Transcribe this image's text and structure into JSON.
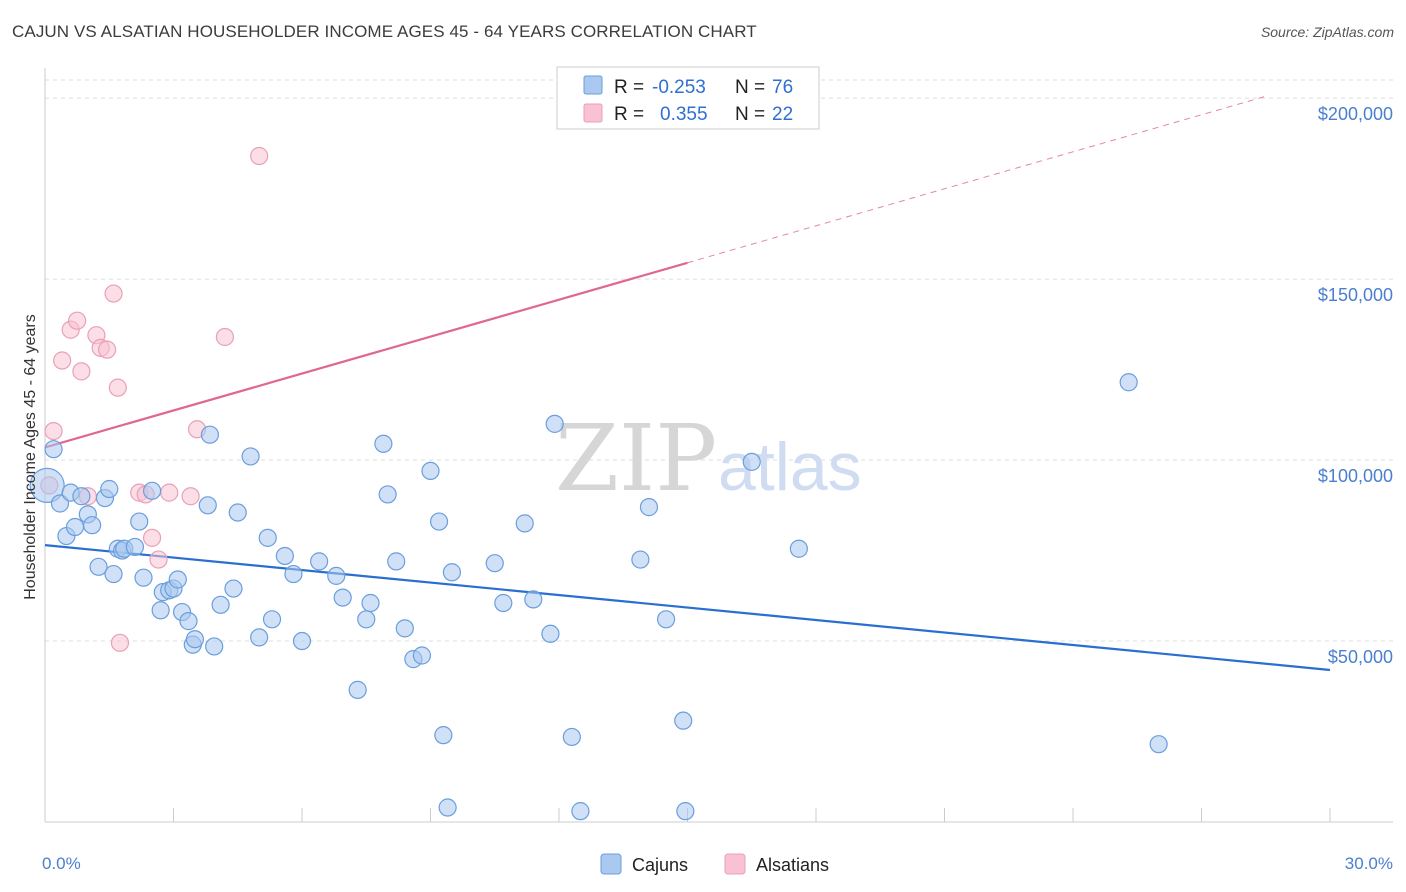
{
  "title": "CAJUN VS ALSATIAN HOUSEHOLDER INCOME AGES 45 - 64 YEARS CORRELATION CHART",
  "source": "Source: ZipAtlas.com",
  "colors": {
    "cajuns_fill": "#aac8f0",
    "cajuns_stroke": "#6a9edc",
    "cajuns_line": "#2a6fd0",
    "alsatians_fill": "#f8c2d2",
    "alsatians_stroke": "#e8a0b8",
    "alsatians_line": "#e06890",
    "grid": "#dddddd",
    "axis_text": "#4a7fd0"
  },
  "legend": {
    "row1": {
      "r_label": "R =",
      "r_value": "-0.253",
      "n_label": "N =",
      "n_value": "76"
    },
    "row2": {
      "r_label": "R =",
      "r_value": "0.355",
      "n_label": "N =",
      "n_value": "22"
    }
  },
  "watermark": {
    "zip": "ZIP",
    "atlas": "atlas"
  },
  "chart_data": {
    "type": "scatter",
    "title": "CAJUN VS ALSATIAN HOUSEHOLDER INCOME AGES 45 - 64 YEARS CORRELATION CHART",
    "xlabel": "",
    "ylabel": "Householder Income Ages 45 - 64 years",
    "xlim": [
      0,
      30
    ],
    "ylim": [
      0,
      205000
    ],
    "x_tick_labels": [
      "0.0%",
      "30.0%"
    ],
    "y_ticks": [
      50000,
      100000,
      150000,
      200000
    ],
    "y_tick_labels": [
      "$50,000",
      "$100,000",
      "$150,000",
      "$200,000"
    ],
    "grid": true,
    "legend_position": "top-center",
    "series": [
      {
        "name": "Cajuns",
        "r": -0.253,
        "n": 76,
        "trend": {
          "x": [
            0,
            30
          ],
          "y": [
            76500,
            42000
          ]
        },
        "points": [
          [
            0.05,
            93000
          ],
          [
            0.2,
            103000
          ],
          [
            0.35,
            88000
          ],
          [
            0.5,
            79000
          ],
          [
            0.6,
            91000
          ],
          [
            0.7,
            81500
          ],
          [
            0.85,
            90000
          ],
          [
            1.0,
            85000
          ],
          [
            1.1,
            82000
          ],
          [
            1.25,
            70500
          ],
          [
            1.4,
            89500
          ],
          [
            1.5,
            92000
          ],
          [
            1.6,
            68500
          ],
          [
            1.7,
            75500
          ],
          [
            1.8,
            75000
          ],
          [
            1.85,
            75500
          ],
          [
            2.1,
            76000
          ],
          [
            2.2,
            83000
          ],
          [
            2.3,
            67500
          ],
          [
            2.5,
            91500
          ],
          [
            2.7,
            58500
          ],
          [
            2.75,
            63500
          ],
          [
            2.9,
            64000
          ],
          [
            3.0,
            64500
          ],
          [
            3.1,
            67000
          ],
          [
            3.2,
            58000
          ],
          [
            3.35,
            55500
          ],
          [
            3.45,
            49000
          ],
          [
            3.5,
            50500
          ],
          [
            3.8,
            87500
          ],
          [
            3.85,
            107000
          ],
          [
            3.95,
            48500
          ],
          [
            4.1,
            60000
          ],
          [
            4.4,
            64500
          ],
          [
            4.5,
            85500
          ],
          [
            4.8,
            101000
          ],
          [
            5.0,
            51000
          ],
          [
            5.2,
            78500
          ],
          [
            5.3,
            56000
          ],
          [
            5.6,
            73500
          ],
          [
            5.8,
            68500
          ],
          [
            6.0,
            50000
          ],
          [
            6.4,
            72000
          ],
          [
            6.8,
            68000
          ],
          [
            6.95,
            62000
          ],
          [
            7.3,
            36500
          ],
          [
            7.5,
            56000
          ],
          [
            7.6,
            60500
          ],
          [
            7.9,
            104500
          ],
          [
            8.0,
            90500
          ],
          [
            8.2,
            72000
          ],
          [
            8.4,
            53500
          ],
          [
            8.6,
            45000
          ],
          [
            8.8,
            46000
          ],
          [
            9.0,
            97000
          ],
          [
            9.2,
            83000
          ],
          [
            9.3,
            24000
          ],
          [
            9.4,
            4000
          ],
          [
            9.5,
            69000
          ],
          [
            10.5,
            71500
          ],
          [
            10.7,
            60500
          ],
          [
            11.2,
            82500
          ],
          [
            11.4,
            61500
          ],
          [
            11.8,
            52000
          ],
          [
            11.9,
            110000
          ],
          [
            12.3,
            23500
          ],
          [
            12.5,
            3000
          ],
          [
            13.9,
            72500
          ],
          [
            14.1,
            87000
          ],
          [
            14.5,
            56000
          ],
          [
            14.9,
            28000
          ],
          [
            14.95,
            3000
          ],
          [
            16.5,
            99500
          ],
          [
            17.6,
            75500
          ],
          [
            25.3,
            121500
          ],
          [
            26.0,
            21500
          ]
        ]
      },
      {
        "name": "Alsatians",
        "r": 0.355,
        "n": 22,
        "trend": {
          "x": [
            0,
            15
          ],
          "y": [
            103500,
            154500
          ]
        },
        "trend_dashed": {
          "x": [
            15,
            28.5
          ],
          "y": [
            154500,
            200500
          ]
        },
        "points": [
          [
            0.1,
            93000
          ],
          [
            0.2,
            108000
          ],
          [
            0.4,
            127500
          ],
          [
            0.6,
            136000
          ],
          [
            0.75,
            138500
          ],
          [
            0.85,
            124500
          ],
          [
            1.0,
            90000
          ],
          [
            1.2,
            134500
          ],
          [
            1.3,
            131000
          ],
          [
            1.45,
            130500
          ],
          [
            1.6,
            146000
          ],
          [
            1.7,
            120000
          ],
          [
            1.75,
            49500
          ],
          [
            2.2,
            91000
          ],
          [
            2.35,
            90500
          ],
          [
            2.5,
            78500
          ],
          [
            2.65,
            72500
          ],
          [
            2.9,
            91000
          ],
          [
            3.4,
            90000
          ],
          [
            3.55,
            108500
          ],
          [
            4.2,
            134000
          ],
          [
            5.0,
            184000
          ]
        ]
      }
    ]
  },
  "bottom_legend": {
    "cajuns": "Cajuns",
    "alsatians": "Alsatians"
  }
}
